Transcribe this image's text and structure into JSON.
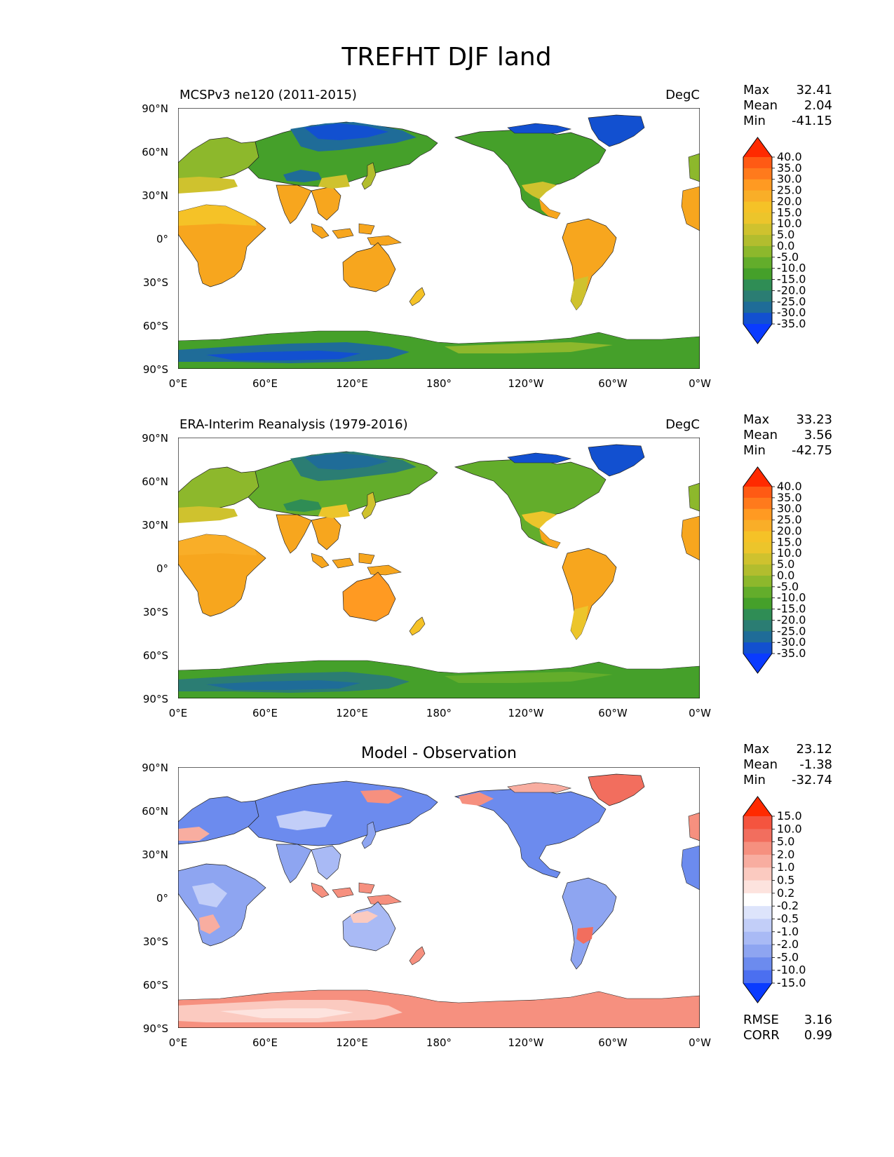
{
  "figure": {
    "title": "TREFHT DJF land"
  },
  "axes": {
    "lat_ticks": [
      "90°N",
      "60°N",
      "30°N",
      "0°",
      "30°S",
      "60°S",
      "90°S"
    ],
    "lon_ticks": [
      "0°E",
      "60°E",
      "120°E",
      "180°",
      "120°W",
      "60°W",
      "0°W"
    ]
  },
  "stat_labels": {
    "max": "Max",
    "mean": "Mean",
    "min": "Min",
    "rmse": "RMSE",
    "corr": "CORR"
  },
  "panels": [
    {
      "id": "model",
      "title_left": "MCSPv3 ne120 (2011-2015)",
      "title_right": "DegC",
      "title_center": "",
      "stats": {
        "max": "32.41",
        "mean": "2.04",
        "min": "-41.15"
      },
      "colorbar": {
        "levels": [
          "40.0",
          "35.0",
          "30.0",
          "25.0",
          "20.0",
          "15.0",
          "10.0",
          "5.0",
          "0.0",
          "-5.0",
          "-10.0",
          "-15.0",
          "-20.0",
          "-25.0",
          "-30.0",
          "-35.0"
        ],
        "colors": [
          "#ff2a00",
          "#ff5a14",
          "#ff7a1c",
          "#ff9a22",
          "#f9ae28",
          "#f5c227",
          "#ecc52b",
          "#cfc22e",
          "#b2bd2e",
          "#8db82c",
          "#63ad2b",
          "#45a02a",
          "#2f8d55",
          "#2b7d73",
          "#1f6c98",
          "#1250d0",
          "#0a3bff"
        ]
      }
    },
    {
      "id": "obs",
      "title_left": "ERA-Interim Reanalysis (1979-2016)",
      "title_right": "DegC",
      "title_center": "",
      "stats": {
        "max": "33.23",
        "mean": "3.56",
        "min": "-42.75"
      },
      "colorbar": {
        "levels": [
          "40.0",
          "35.0",
          "30.0",
          "25.0",
          "20.0",
          "15.0",
          "10.0",
          "5.0",
          "0.0",
          "-5.0",
          "-10.0",
          "-15.0",
          "-20.0",
          "-25.0",
          "-30.0",
          "-35.0"
        ],
        "colors": [
          "#ff2a00",
          "#ff5a14",
          "#ff7a1c",
          "#ff9a22",
          "#f9ae28",
          "#f5c227",
          "#ecc52b",
          "#cfc22e",
          "#b2bd2e",
          "#8db82c",
          "#63ad2b",
          "#45a02a",
          "#2f8d55",
          "#2b7d73",
          "#1f6c98",
          "#1250d0",
          "#0a3bff"
        ]
      }
    },
    {
      "id": "diff",
      "title_left": "",
      "title_right": "",
      "title_center": "Model - Observation",
      "stats": {
        "max": "23.12",
        "mean": "-1.38",
        "min": "-32.74",
        "rmse": "3.16",
        "corr": "0.99"
      },
      "colorbar": {
        "levels": [
          "15.0",
          "10.0",
          "5.0",
          "2.0",
          "1.0",
          "0.5",
          "0.2",
          "-0.2",
          "-0.5",
          "-1.0",
          "-2.0",
          "-5.0",
          "-10.0",
          "-15.0"
        ],
        "colors": [
          "#ff2a00",
          "#f4543f",
          "#f26e5e",
          "#f6907f",
          "#f8ada0",
          "#fbcac0",
          "#fde3de",
          "#ffffff",
          "#dde4fb",
          "#c2cef8",
          "#a9baf5",
          "#8ea5f1",
          "#6c8bee",
          "#4b6ff0",
          "#0a3bff"
        ]
      }
    }
  ]
}
